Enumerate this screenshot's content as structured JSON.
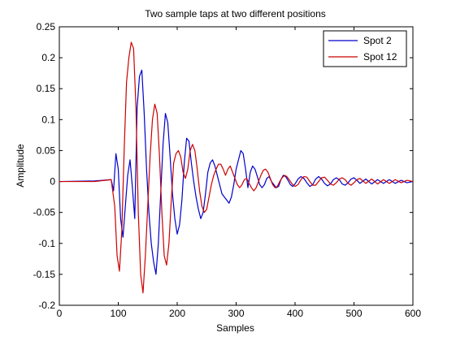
{
  "chart_data": {
    "type": "line",
    "title": "Two sample taps at two different positions",
    "xlabel": "Samples",
    "ylabel": "Amplitude",
    "xlim": [
      0,
      600
    ],
    "ylim": [
      -0.2,
      0.25
    ],
    "xticks": [
      0,
      100,
      200,
      300,
      400,
      500,
      600
    ],
    "xtick_labels": [
      "0",
      "100",
      "200",
      "300",
      "400",
      "500",
      "600"
    ],
    "yticks": [
      -0.2,
      -0.15,
      -0.1,
      -0.05,
      0,
      0.05,
      0.1,
      0.15,
      0.2,
      0.25
    ],
    "ytick_labels": [
      "-0.2",
      "-0.15",
      "-0.1",
      "-0.05",
      "0",
      "0.05",
      "0.1",
      "0.15",
      "0.2",
      "0.25"
    ],
    "grid": false,
    "legend_position": "top-right",
    "series": [
      {
        "name": "Spot 2",
        "color": "#0000cc",
        "x": [
          0,
          60,
          88,
          92,
          96,
          100,
          104,
          108,
          112,
          116,
          120,
          124,
          128,
          132,
          136,
          140,
          144,
          148,
          152,
          156,
          160,
          164,
          168,
          172,
          176,
          180,
          184,
          188,
          192,
          196,
          200,
          204,
          208,
          212,
          216,
          220,
          224,
          228,
          232,
          236,
          240,
          244,
          248,
          252,
          256,
          260,
          264,
          268,
          272,
          276,
          280,
          284,
          288,
          292,
          296,
          300,
          304,
          308,
          312,
          316,
          320,
          324,
          328,
          332,
          336,
          340,
          344,
          348,
          352,
          356,
          360,
          364,
          368,
          372,
          376,
          380,
          384,
          388,
          392,
          396,
          400,
          405,
          410,
          415,
          420,
          425,
          430,
          435,
          440,
          445,
          450,
          455,
          460,
          465,
          470,
          475,
          480,
          485,
          490,
          495,
          500,
          505,
          510,
          520,
          530,
          540,
          550,
          560,
          570,
          580,
          590,
          600
        ],
        "y": [
          0.0,
          0.001,
          0.003,
          -0.015,
          0.045,
          0.02,
          -0.06,
          -0.09,
          -0.04,
          0.01,
          0.035,
          -0.01,
          -0.06,
          0.12,
          0.17,
          0.18,
          0.11,
          0.02,
          -0.05,
          -0.1,
          -0.13,
          -0.15,
          -0.1,
          -0.02,
          0.06,
          0.11,
          0.095,
          0.04,
          -0.02,
          -0.06,
          -0.085,
          -0.07,
          -0.03,
          0.03,
          0.07,
          0.065,
          0.03,
          0.0,
          -0.025,
          -0.045,
          -0.06,
          -0.05,
          -0.02,
          0.015,
          0.03,
          0.035,
          0.025,
          0.01,
          -0.005,
          -0.02,
          -0.025,
          -0.03,
          -0.035,
          -0.025,
          -0.005,
          0.02,
          0.035,
          0.05,
          0.045,
          0.02,
          -0.01,
          0.015,
          0.025,
          0.02,
          0.008,
          -0.005,
          -0.01,
          -0.005,
          0.005,
          0.008,
          0.0,
          -0.005,
          -0.01,
          -0.008,
          0.003,
          0.01,
          0.008,
          0.002,
          -0.005,
          -0.008,
          -0.004,
          0.004,
          0.008,
          0.005,
          -0.002,
          -0.008,
          -0.005,
          0.004,
          0.008,
          0.004,
          -0.003,
          -0.007,
          -0.004,
          0.003,
          0.006,
          0.003,
          -0.004,
          -0.006,
          -0.002,
          0.004,
          0.006,
          0.002,
          -0.003,
          0.004,
          -0.004,
          0.003,
          -0.003,
          0.003,
          -0.003,
          0.002,
          -0.002,
          0.0
        ]
      },
      {
        "name": "Spot 12",
        "color": "#cc0000",
        "x": [
          0,
          60,
          88,
          94,
          98,
          102,
          106,
          110,
          114,
          118,
          122,
          126,
          130,
          134,
          138,
          142,
          146,
          150,
          154,
          158,
          162,
          166,
          170,
          174,
          178,
          182,
          186,
          190,
          194,
          198,
          202,
          206,
          210,
          214,
          218,
          222,
          226,
          230,
          234,
          238,
          242,
          246,
          250,
          254,
          258,
          262,
          266,
          270,
          274,
          278,
          282,
          286,
          290,
          294,
          298,
          302,
          306,
          310,
          314,
          318,
          322,
          326,
          330,
          334,
          338,
          342,
          346,
          350,
          354,
          358,
          362,
          366,
          370,
          374,
          378,
          382,
          386,
          390,
          395,
          400,
          405,
          410,
          415,
          420,
          425,
          430,
          435,
          440,
          445,
          450,
          455,
          460,
          465,
          470,
          475,
          480,
          485,
          490,
          495,
          500,
          505,
          510,
          520,
          530,
          540,
          550,
          560,
          570,
          580,
          590,
          600
        ],
        "y": [
          0.0,
          0.0,
          0.003,
          -0.04,
          -0.12,
          -0.145,
          -0.08,
          0.05,
          0.16,
          0.2,
          0.225,
          0.215,
          0.12,
          -0.05,
          -0.15,
          -0.18,
          -0.12,
          -0.04,
          0.04,
          0.1,
          0.125,
          0.11,
          0.04,
          -0.05,
          -0.12,
          -0.135,
          -0.1,
          -0.03,
          0.03,
          0.045,
          0.05,
          0.04,
          0.015,
          0.005,
          0.02,
          0.05,
          0.06,
          0.05,
          0.02,
          -0.015,
          -0.04,
          -0.05,
          -0.045,
          -0.025,
          -0.005,
          0.01,
          0.02,
          0.028,
          0.028,
          0.02,
          0.01,
          0.02,
          0.025,
          0.015,
          0.005,
          -0.005,
          -0.01,
          -0.005,
          0.003,
          0.005,
          -0.003,
          -0.01,
          -0.015,
          -0.01,
          0.0,
          0.01,
          0.018,
          0.02,
          0.015,
          0.005,
          -0.005,
          -0.01,
          -0.008,
          0.0,
          0.006,
          0.01,
          0.008,
          0.003,
          -0.004,
          -0.008,
          -0.005,
          0.003,
          0.008,
          0.007,
          0.0,
          -0.006,
          -0.006,
          0.0,
          0.006,
          0.007,
          0.002,
          -0.004,
          -0.006,
          -0.002,
          0.004,
          0.006,
          0.003,
          -0.003,
          -0.006,
          -0.002,
          0.003,
          0.005,
          -0.003,
          0.004,
          -0.004,
          0.003,
          -0.003,
          0.003,
          -0.002,
          0.002,
          0.0
        ]
      }
    ]
  }
}
